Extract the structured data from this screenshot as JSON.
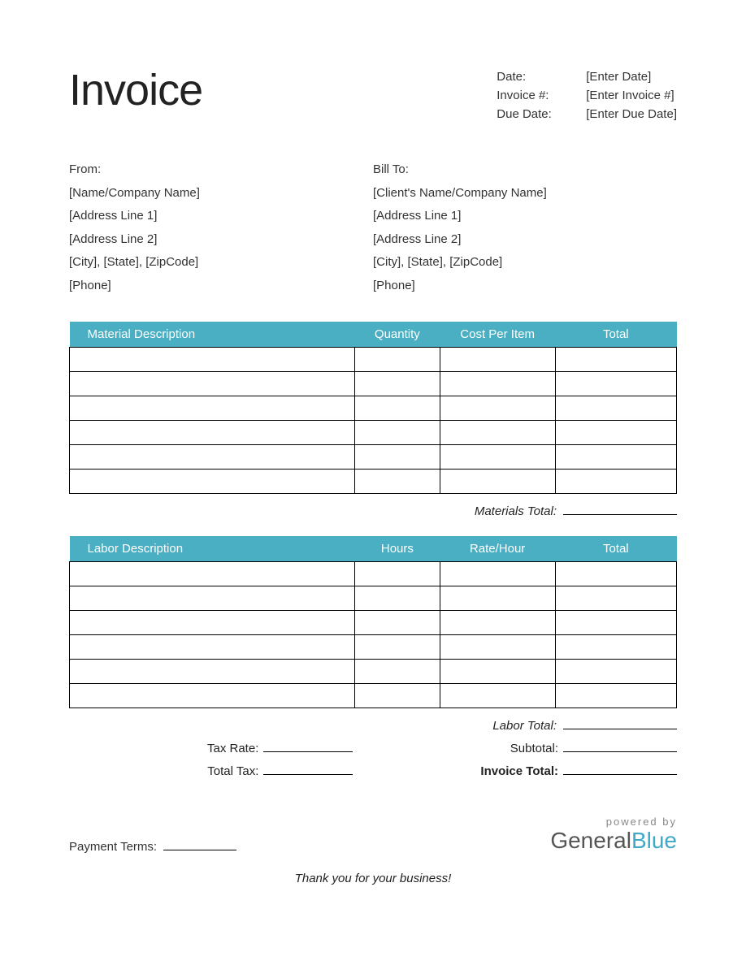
{
  "title": "Invoice",
  "accent_color": "#4aafc3",
  "meta": {
    "date_label": "Date:",
    "date_value": "[Enter Date]",
    "invoice_num_label": "Invoice #:",
    "invoice_num_value": "[Enter Invoice #]",
    "due_label": "Due Date:",
    "due_value": "[Enter Due Date]"
  },
  "from": {
    "heading": "From:",
    "name": "[Name/Company Name]",
    "addr1": "[Address Line 1]",
    "addr2": "[Address Line 2]",
    "city": "[City], [State], [ZipCode]",
    "phone": "[Phone]"
  },
  "billto": {
    "heading": "Bill To:",
    "name": "[Client's Name/Company Name]",
    "addr1": "[Address Line 1]",
    "addr2": "[Address Line 2]",
    "city": "[City], [State], [ZipCode]",
    "phone": "[Phone]"
  },
  "materials_table": {
    "columns": [
      "Material Description",
      "Quantity",
      "Cost Per Item",
      "Total"
    ],
    "row_count": 6,
    "subtotal_label": "Materials Total:"
  },
  "labor_table": {
    "columns": [
      "Labor Description",
      "Hours",
      "Rate/Hour",
      "Total"
    ],
    "row_count": 6,
    "subtotal_label": "Labor Total:"
  },
  "totals": {
    "tax_rate_label": "Tax Rate:",
    "total_tax_label": "Total Tax:",
    "subtotal_label": "Subtotal:",
    "invoice_total_label": "Invoice Total:"
  },
  "footer": {
    "payment_terms_label": "Payment Terms:",
    "thanks": "Thank you for your business!",
    "powered": "powered by",
    "brand_part1": "General",
    "brand_part2": "Blue"
  }
}
